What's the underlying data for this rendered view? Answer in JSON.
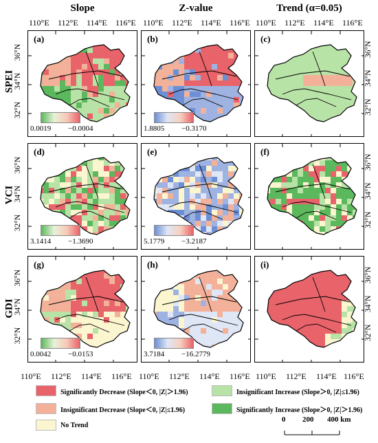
{
  "columns": [
    "Slope",
    "Z-value",
    "Trend (α=0.05)"
  ],
  "rows": [
    "SPEI",
    "VCI",
    "GDI"
  ],
  "lon_labels": [
    "110°E",
    "112°E",
    "114°E",
    "116°E"
  ],
  "lat_labels": [
    "36°N",
    "34°N",
    "32°N"
  ],
  "panels": [
    {
      "label": "(a)",
      "cbar_min": "0.0019",
      "cbar_max": "−0.0004"
    },
    {
      "label": "(b)",
      "cbar_min": "1.8805",
      "cbar_max": "−0.3170"
    },
    {
      "label": "(c)"
    },
    {
      "label": "(d)",
      "cbar_min": "3.1414",
      "cbar_max": "−1.3690"
    },
    {
      "label": "(e)",
      "cbar_min": "5.1779",
      "cbar_max": "−3.2187"
    },
    {
      "label": "(f)"
    },
    {
      "label": "(g)",
      "cbar_min": "0.0042",
      "cbar_max": "−0.0153"
    },
    {
      "label": "(h)",
      "cbar_min": "3.7184",
      "cbar_max": "−16.2779"
    },
    {
      "label": "(i)"
    }
  ],
  "legend": {
    "sig_decrease": "Significantly Decrease (Slope＜0, |Z|＞1.96)",
    "insig_decrease": "Insignificant Decrease (Slope＜0, |Z|≤1.96)",
    "no_trend": "No Trend",
    "insig_increase": "Insignificant Increase (Slope＞0, |Z|≤1.96)",
    "sig_increase": "Significantly Increase (Slope＞0, |Z|＞1.96)"
  },
  "legend_colors": {
    "sig_decrease": "#e8636a",
    "insig_decrease": "#f4b19a",
    "no_trend": "#fbf6d0",
    "insig_increase": "#b8e3a6",
    "sig_increase": "#5cb85c"
  },
  "scale": {
    "t0": "0",
    "t1": "200",
    "t2": "400 km"
  }
}
